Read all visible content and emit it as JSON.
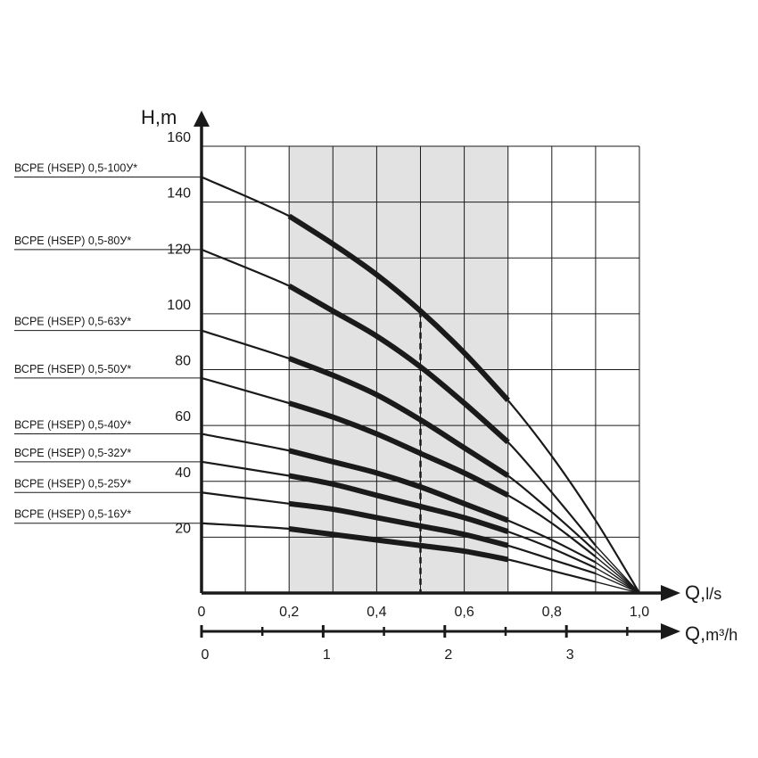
{
  "chart_data": {
    "type": "line",
    "title": "",
    "ylabel": "H,m",
    "xlabel_main": "Q,",
    "xlabel_main_unit": "l/s",
    "xlabel_secondary": "Q,",
    "xlabel_secondary_unit": "m³/h",
    "xlim": [
      0,
      1.0
    ],
    "ylim": [
      0,
      160
    ],
    "y_ticks": [
      {
        "value": 20,
        "label": "20"
      },
      {
        "value": 40,
        "label": "40"
      },
      {
        "value": 60,
        "label": "60"
      },
      {
        "value": 80,
        "label": "80"
      },
      {
        "value": 100,
        "label": "100"
      },
      {
        "value": 120,
        "label": "120"
      },
      {
        "value": 140,
        "label": "140"
      },
      {
        "value": 160,
        "label": "160"
      }
    ],
    "x_ticks": [
      {
        "value": 0,
        "label": "0"
      },
      {
        "value": 0.2,
        "label": "0,2"
      },
      {
        "value": 0.4,
        "label": "0,4"
      },
      {
        "value": 0.6,
        "label": "0,6"
      },
      {
        "value": 0.8,
        "label": "0,8"
      },
      {
        "value": 1.0,
        "label": "1,0"
      }
    ],
    "secondary_x_ticks": [
      {
        "value": 0,
        "label": "0"
      },
      {
        "value": 1,
        "label": "1"
      },
      {
        "value": 2,
        "label": "2"
      },
      {
        "value": 3,
        "label": "3"
      }
    ],
    "secondary_x_minor_ticks": [
      0.5,
      1.5,
      2.5,
      3.5
    ],
    "grid": true,
    "working_range": [
      0.2,
      0.7
    ],
    "nominal_flow": 0.5,
    "series": [
      {
        "name": "ВСРЕ (HSEP) 0,5-100У*",
        "x": [
          0,
          0.2,
          0.3,
          0.4,
          0.5,
          0.6,
          0.7,
          0.8,
          0.9,
          1.0
        ],
        "values": [
          149,
          135,
          125,
          114,
          101,
          86,
          69,
          49,
          26,
          0
        ]
      },
      {
        "name": "ВСРЕ (HSEP) 0,5-80У*",
        "x": [
          0,
          0.2,
          0.3,
          0.4,
          0.5,
          0.6,
          0.7,
          0.8,
          0.9,
          1.0
        ],
        "values": [
          123,
          110,
          101,
          92,
          81,
          68,
          54,
          36,
          17,
          0
        ]
      },
      {
        "name": "ВСРЕ (HSEP) 0,5-63У*",
        "x": [
          0,
          0.2,
          0.3,
          0.4,
          0.5,
          0.6,
          0.7,
          0.8,
          0.9,
          1.0
        ],
        "values": [
          94,
          84,
          78,
          71,
          62,
          52,
          42,
          29,
          15,
          0
        ]
      },
      {
        "name": "ВСРЕ (HSEP) 0,5-50У*",
        "x": [
          0,
          0.2,
          0.3,
          0.4,
          0.5,
          0.6,
          0.7,
          0.8,
          0.9,
          1.0
        ],
        "values": [
          77,
          68,
          63,
          57,
          50,
          43,
          35,
          25,
          13,
          0
        ]
      },
      {
        "name": "ВСРЕ (HSEP) 0,5-40У*",
        "x": [
          0,
          0.2,
          0.3,
          0.4,
          0.5,
          0.6,
          0.7,
          0.8,
          0.9,
          1.0
        ],
        "values": [
          57,
          51,
          47,
          43,
          38,
          32,
          26,
          19,
          11,
          0
        ]
      },
      {
        "name": "ВСРЕ (HSEP) 0,5-32У*",
        "x": [
          0,
          0.2,
          0.3,
          0.4,
          0.5,
          0.6,
          0.7,
          0.8,
          0.9,
          1.0
        ],
        "values": [
          47,
          42,
          39,
          35,
          31,
          27,
          22,
          16,
          9,
          0
        ]
      },
      {
        "name": "ВСРЕ (HSEP) 0,5-25У*",
        "x": [
          0,
          0.2,
          0.3,
          0.4,
          0.5,
          0.6,
          0.7,
          0.8,
          0.9,
          1.0
        ],
        "values": [
          36,
          32,
          30,
          27,
          24,
          21,
          17,
          12,
          7,
          0
        ]
      },
      {
        "name": "ВСРЕ (HSEP) 0,5-16У*",
        "x": [
          0,
          0.2,
          0.3,
          0.4,
          0.5,
          0.6,
          0.7,
          0.8,
          0.9,
          1.0
        ],
        "values": [
          25,
          23,
          21,
          19,
          17,
          15,
          12,
          8,
          4,
          0
        ]
      }
    ]
  }
}
